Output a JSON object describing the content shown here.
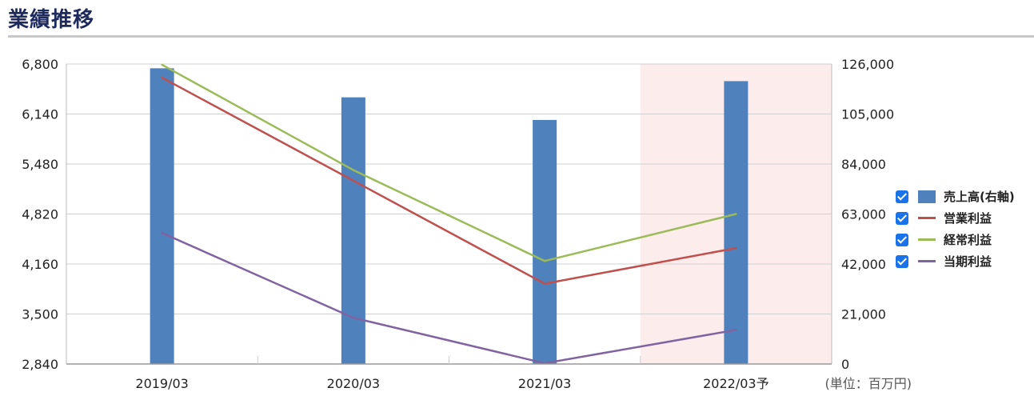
{
  "page": {
    "title": "業績推移"
  },
  "chart_data": {
    "type": "bar+line",
    "categories": [
      "2019/03",
      "2020/03",
      "2021/03",
      "2022/03予"
    ],
    "forecast_index": 3,
    "forecast_shading_color": "#fdecec",
    "unit_label": "(単位：百万円)",
    "y_left": {
      "min": 2840,
      "max": 6800,
      "ticks": [
        "6,800",
        "6,140",
        "5,480",
        "4,820",
        "4,160",
        "3,500",
        "2,840"
      ]
    },
    "y_right": {
      "min": 0,
      "max": 126000,
      "ticks": [
        "126,000",
        "105,000",
        "84,000",
        "63,000",
        "42,000",
        "21,000",
        "0"
      ]
    },
    "grid": true,
    "legend_position": "right",
    "series": [
      {
        "name": "売上高(右軸)",
        "kind": "bar",
        "axis": "right",
        "color": "#4f81bd",
        "values": [
          124200,
          112000,
          102500,
          118800
        ]
      },
      {
        "name": "営業利益",
        "kind": "line",
        "axis": "left",
        "color": "#c0504d",
        "values": [
          6620,
          5260,
          3900,
          4370
        ]
      },
      {
        "name": "経常利益",
        "kind": "line",
        "axis": "left",
        "color": "#9bbb59",
        "values": [
          6790,
          5400,
          4200,
          4820
        ]
      },
      {
        "name": "当期利益",
        "kind": "line",
        "axis": "left",
        "color": "#8064a2",
        "values": [
          4570,
          3450,
          2850,
          3290
        ]
      }
    ]
  }
}
